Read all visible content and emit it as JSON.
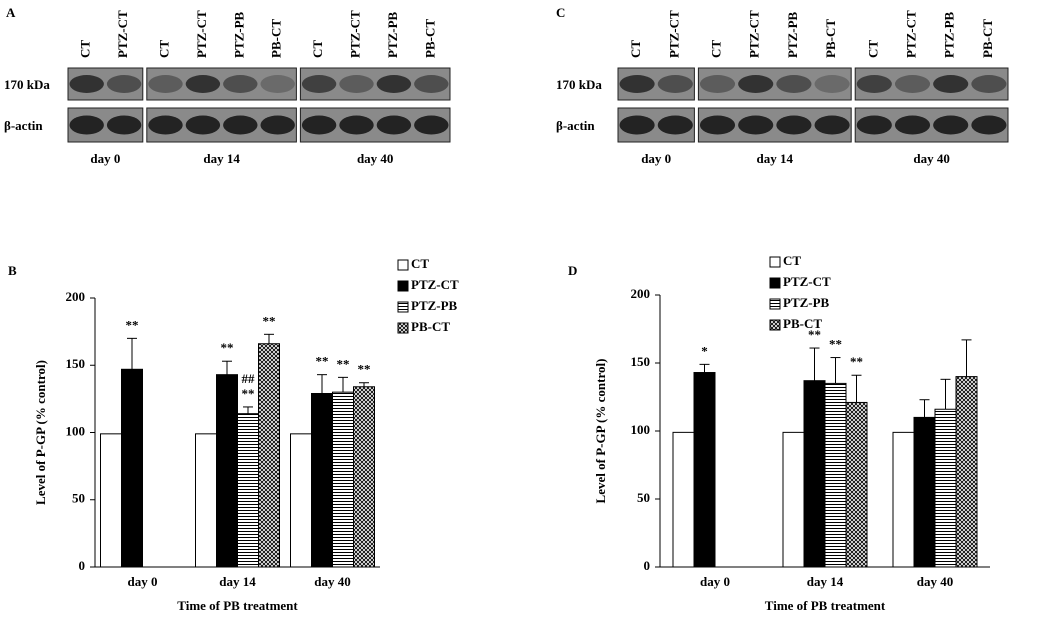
{
  "blots": [
    {
      "panel": "A",
      "lanes": [
        [
          "CT",
          "PTZ-CT"
        ],
        [
          "CT",
          "PTZ-CT",
          "PTZ-PB",
          "PB-CT"
        ],
        [
          "CT",
          "PTZ-CT",
          "PTZ-PB",
          "PB-CT"
        ]
      ],
      "rows": [
        "170 kDa",
        "β-actin"
      ],
      "groups": [
        "day 0",
        "day 14",
        "day 40"
      ]
    },
    {
      "panel": "C",
      "lanes": [
        [
          "CT",
          "PTZ-CT"
        ],
        [
          "CT",
          "PTZ-CT",
          "PTZ-PB",
          "PB-CT"
        ],
        [
          "CT",
          "PTZ-CT",
          "PTZ-PB",
          "PB-CT"
        ]
      ],
      "rows": [
        "170 kDa",
        "β-actin"
      ],
      "groups": [
        "day 0",
        "day 14",
        "day 40"
      ]
    }
  ],
  "chart_data": [
    {
      "type": "bar",
      "panel": "B",
      "y_label": "Level of P-GP (% control)",
      "x_label": "Time of PB treatment",
      "categories": [
        "day 0",
        "day 14",
        "day 40"
      ],
      "ylim": [
        0,
        200
      ],
      "yticks": [
        0,
        50,
        100,
        150,
        200
      ],
      "grid": false,
      "legend": "top-right",
      "series": [
        {
          "name": "CT",
          "color": "#ffffff",
          "pattern": "solid",
          "values": [
            99,
            99,
            99
          ],
          "errors": [
            null,
            null,
            null
          ],
          "annotations": [
            null,
            null,
            null
          ]
        },
        {
          "name": "PTZ-CT",
          "color": "#000000",
          "pattern": "solid",
          "values": [
            147,
            143,
            129
          ],
          "errors": [
            23,
            10,
            14
          ],
          "annotations": [
            [
              "**"
            ],
            [
              "**"
            ],
            [
              "**"
            ]
          ]
        },
        {
          "name": "PTZ-PB",
          "color": "#000000",
          "pattern": "hstripe",
          "values": [
            null,
            114,
            130
          ],
          "errors": [
            null,
            5,
            11
          ],
          "annotations": [
            null,
            [
              "##",
              "**"
            ],
            [
              "**"
            ]
          ]
        },
        {
          "name": "PB-CT",
          "color": "#000000",
          "pattern": "crosshatch",
          "values": [
            null,
            166,
            134
          ],
          "errors": [
            null,
            7,
            3
          ],
          "annotations": [
            null,
            [
              "**"
            ],
            [
              "**"
            ]
          ]
        }
      ]
    },
    {
      "type": "bar",
      "panel": "D",
      "y_label": "Level of P-GP (% control)",
      "x_label": "Time of PB treatment",
      "categories": [
        "day 0",
        "day 14",
        "day 40"
      ],
      "ylim": [
        0,
        200
      ],
      "yticks": [
        0,
        50,
        100,
        150,
        200
      ],
      "grid": false,
      "legend": "top-right",
      "series": [
        {
          "name": "CT",
          "color": "#ffffff",
          "pattern": "solid",
          "values": [
            99,
            99,
            99
          ],
          "errors": [
            null,
            null,
            null
          ],
          "annotations": [
            null,
            null,
            null
          ]
        },
        {
          "name": "PTZ-CT",
          "color": "#000000",
          "pattern": "solid",
          "values": [
            143,
            137,
            110
          ],
          "errors": [
            6,
            24,
            13
          ],
          "annotations": [
            [
              "*"
            ],
            [
              "**"
            ],
            null
          ]
        },
        {
          "name": "PTZ-PB",
          "color": "#000000",
          "pattern": "hstripe",
          "values": [
            null,
            135,
            116
          ],
          "errors": [
            null,
            19,
            22
          ],
          "annotations": [
            null,
            [
              "**"
            ],
            null
          ]
        },
        {
          "name": "PB-CT",
          "color": "#000000",
          "pattern": "crosshatch",
          "values": [
            null,
            121,
            140
          ],
          "errors": [
            null,
            20,
            27
          ],
          "annotations": [
            null,
            [
              "**"
            ],
            null
          ]
        }
      ]
    }
  ]
}
